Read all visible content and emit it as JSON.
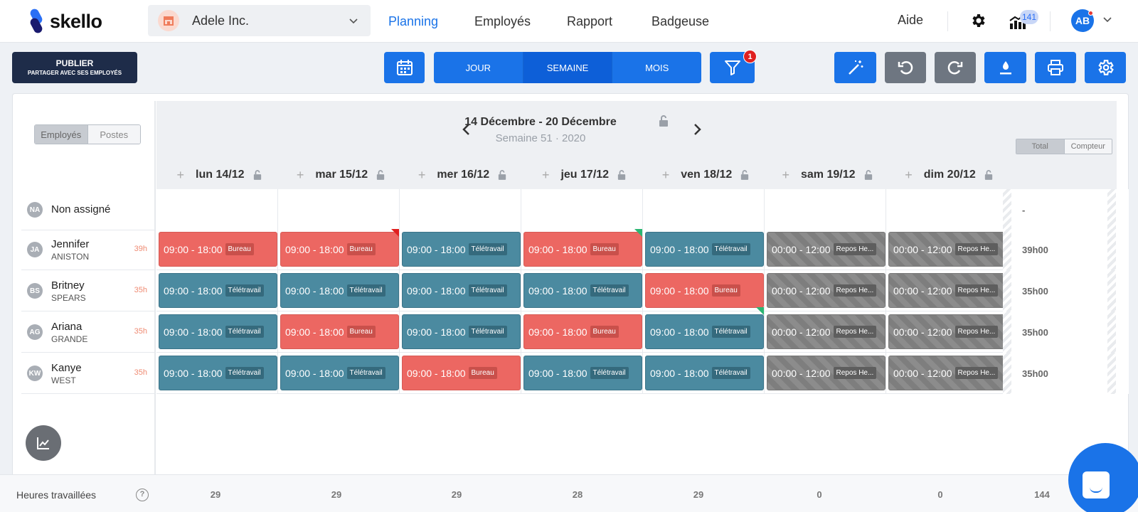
{
  "app": {
    "logo_text": "skello"
  },
  "company": {
    "name": "Adele Inc."
  },
  "nav": {
    "planning": "Planning",
    "employes": "Employés",
    "rapport": "Rapport",
    "badgeuse": "Badgeuse",
    "aide": "Aide"
  },
  "user": {
    "initials": "AB",
    "notifications": "141"
  },
  "toolbar": {
    "publish_label": "PUBLIER",
    "publish_sub": "PARTAGER AVEC SES EMPLOYÉS",
    "view_day": "JOUR",
    "view_week": "SEMAINE",
    "view_month": "MOIS",
    "filter_count": "1"
  },
  "week": {
    "title": "14 Décembre - 20 Décembre",
    "subtitle": "Semaine 51 · 2020"
  },
  "left_toggle": {
    "employees": "Employés",
    "positions": "Postes"
  },
  "total_toggle": {
    "total": "Total",
    "counter": "Compteur"
  },
  "days": [
    "lun 14/12",
    "mar 15/12",
    "mer 16/12",
    "jeu 17/12",
    "ven 18/12",
    "sam 19/12",
    "dim 20/12"
  ],
  "unassigned": {
    "initials": "NA",
    "label": "Non assigné",
    "total": "-"
  },
  "employees": [
    {
      "initials": "JA",
      "first": "Jennifer",
      "last": "ANISTON",
      "hours": "39h",
      "total": "39h00",
      "shifts": [
        {
          "time": "09:00 - 18:00",
          "tag": "Bureau",
          "kind": "red"
        },
        {
          "time": "09:00 - 18:00",
          "tag": "Bureau",
          "kind": "red"
        },
        {
          "time": "09:00 - 18:00",
          "tag": "Télétravail",
          "kind": "teal"
        },
        {
          "time": "09:00 - 18:00",
          "tag": "Bureau",
          "kind": "red"
        },
        {
          "time": "09:00 - 18:00",
          "tag": "Télétravail",
          "kind": "teal"
        },
        {
          "time": "00:00 - 12:00",
          "tag": "Repos He...",
          "kind": "gray"
        },
        {
          "time": "00:00 - 12:00",
          "tag": "Repos He...",
          "kind": "gray"
        }
      ]
    },
    {
      "initials": "BS",
      "first": "Britney",
      "last": "SPEARS",
      "hours": "35h",
      "total": "35h00",
      "shifts": [
        {
          "time": "09:00 - 18:00",
          "tag": "Télétravail",
          "kind": "teal"
        },
        {
          "time": "09:00 - 18:00",
          "tag": "Télétravail",
          "kind": "teal"
        },
        {
          "time": "09:00 - 18:00",
          "tag": "Télétravail",
          "kind": "teal"
        },
        {
          "time": "09:00 - 18:00",
          "tag": "Télétravail",
          "kind": "teal"
        },
        {
          "time": "09:00 - 18:00",
          "tag": "Bureau",
          "kind": "red"
        },
        {
          "time": "00:00 - 12:00",
          "tag": "Repos He...",
          "kind": "gray"
        },
        {
          "time": "00:00 - 12:00",
          "tag": "Repos He...",
          "kind": "gray"
        }
      ]
    },
    {
      "initials": "AG",
      "first": "Ariana",
      "last": "GRANDE",
      "hours": "35h",
      "total": "35h00",
      "shifts": [
        {
          "time": "09:00 - 18:00",
          "tag": "Télétravail",
          "kind": "teal"
        },
        {
          "time": "09:00 - 18:00",
          "tag": "Bureau",
          "kind": "red"
        },
        {
          "time": "09:00 - 18:00",
          "tag": "Télétravail",
          "kind": "teal"
        },
        {
          "time": "09:00 - 18:00",
          "tag": "Bureau",
          "kind": "red"
        },
        {
          "time": "09:00 - 18:00",
          "tag": "Télétravail",
          "kind": "teal"
        },
        {
          "time": "00:00 - 12:00",
          "tag": "Repos He...",
          "kind": "gray"
        },
        {
          "time": "00:00 - 12:00",
          "tag": "Repos He...",
          "kind": "gray"
        }
      ]
    },
    {
      "initials": "KW",
      "first": "Kanye",
      "last": "WEST",
      "hours": "35h",
      "total": "35h00",
      "shifts": [
        {
          "time": "09:00 - 18:00",
          "tag": "Télétravail",
          "kind": "teal"
        },
        {
          "time": "09:00 - 18:00",
          "tag": "Télétravail",
          "kind": "teal"
        },
        {
          "time": "09:00 - 18:00",
          "tag": "Bureau",
          "kind": "red"
        },
        {
          "time": "09:00 - 18:00",
          "tag": "Télétravail",
          "kind": "teal"
        },
        {
          "time": "09:00 - 18:00",
          "tag": "Télétravail",
          "kind": "teal"
        },
        {
          "time": "00:00 - 12:00",
          "tag": "Repos He...",
          "kind": "gray"
        },
        {
          "time": "00:00 - 12:00",
          "tag": "Repos He...",
          "kind": "gray"
        }
      ]
    }
  ],
  "footer": {
    "label": "Heures travaillées",
    "help": "?",
    "values": [
      "29",
      "29",
      "29",
      "28",
      "29",
      "0",
      "0"
    ],
    "total": "144"
  },
  "colors": {
    "accent": "#1a73e8",
    "bureau": "#ec6762",
    "teletravail": "#4b8aa0",
    "repos": "#8c8c8c",
    "publish": "#1e2c49"
  },
  "icons": {
    "calendar": "calendar-icon",
    "filter": "filter-icon",
    "magic": "magic-wand-icon",
    "undo": "undo-icon",
    "redo": "redo-icon",
    "download": "download-icon",
    "print": "print-icon",
    "settings": "settings-icon"
  }
}
